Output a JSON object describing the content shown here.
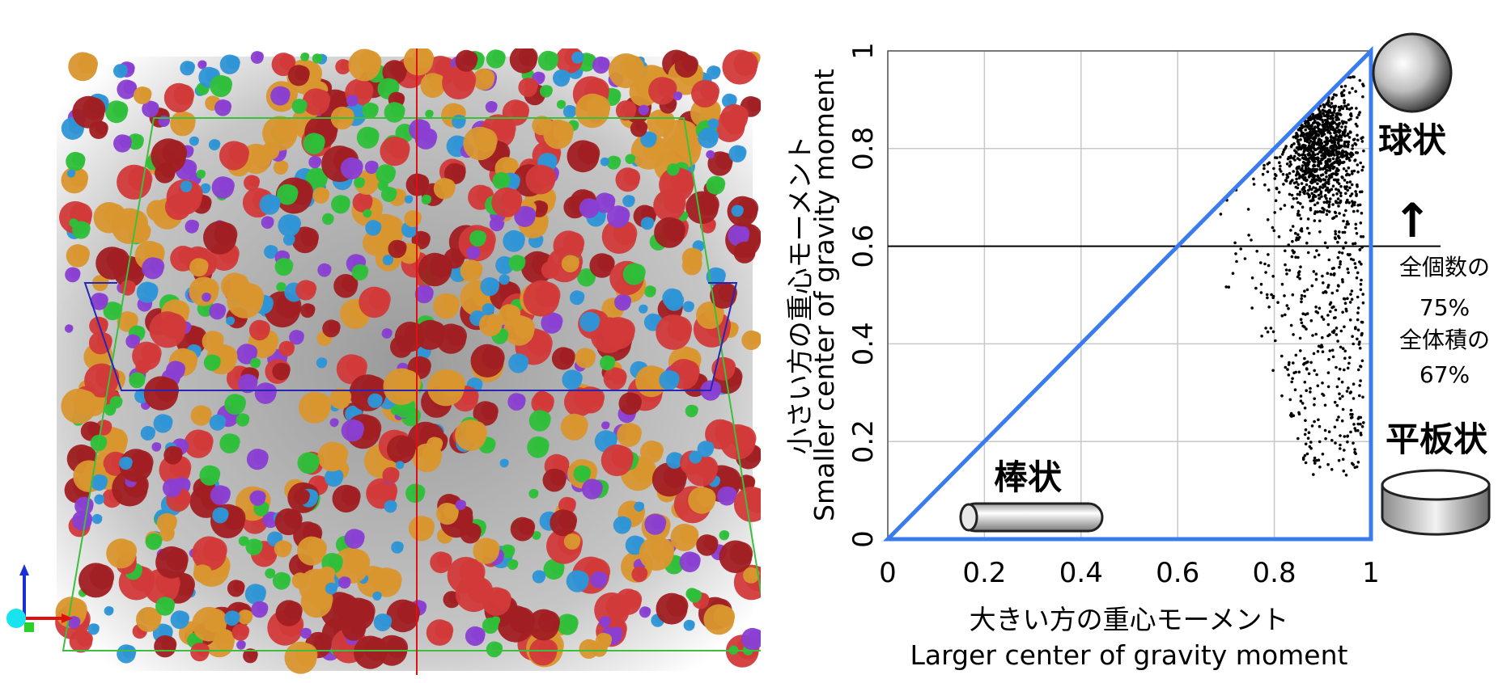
{
  "render_panel": {
    "particle_colors": [
      "#2fbf3a",
      "#d23a3a",
      "#a11f22",
      "#d9962f",
      "#2f95d6",
      "#8a3fd1"
    ],
    "box_outline_color": "#3cbf3c",
    "mid_plane_color": "#2525b8",
    "axis_line_color": "#e01010",
    "triad_x_color": "#e01010",
    "triad_y_color": "#2ad12a",
    "triad_z_color": "#1a2fd6",
    "triad_origin_color": "#18e3ee"
  },
  "chart_data": {
    "type": "scatter",
    "xlabel_ja": "大きい方の重心モーメント",
    "xlabel_en": "Larger center of gravity moment",
    "ylabel_ja": "小さい方の重心モーメント",
    "ylabel_en": "Smaller center of gravity moment",
    "xlim": [
      0,
      1
    ],
    "ylim": [
      0,
      1
    ],
    "x_ticks": [
      0,
      0.2,
      0.4,
      0.6,
      0.8,
      1
    ],
    "y_ticks": [
      0,
      0.2,
      0.4,
      0.6,
      0.8,
      1
    ],
    "x_tick_labels": [
      "0",
      "0.2",
      "0.4",
      "0.6",
      "0.8",
      "1"
    ],
    "y_tick_labels": [
      "0",
      "0.2",
      "0.4",
      "0.6",
      "0.8",
      "1"
    ],
    "grid": true,
    "threshold_line_y": 0.6,
    "region_triangle": [
      [
        0,
        0
      ],
      [
        1,
        1
      ],
      [
        1,
        0
      ]
    ],
    "triangle_color": "#3a7bf0",
    "point_color": "#000000",
    "point_cluster": {
      "count": 1500,
      "center": [
        0.895,
        0.81
      ],
      "x_range": [
        0.66,
        0.985
      ],
      "y_range": [
        0.13,
        0.985
      ]
    }
  },
  "annotations": {
    "sphere_label": "球状",
    "rod_label": "棒状",
    "plate_label": "平板状",
    "count_label": "全個数の",
    "count_value": "75%",
    "volume_label": "全体積の",
    "volume_value": "67%"
  }
}
